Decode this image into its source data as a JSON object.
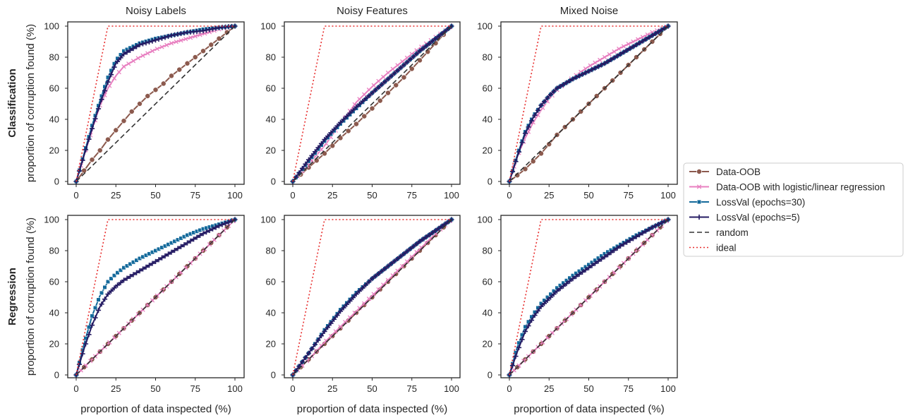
{
  "figure": {
    "column_titles": [
      "Noisy Labels",
      "Noisy Features",
      "Mixed Noise"
    ],
    "row_labels": [
      "Classification",
      "Regression"
    ],
    "ylabel": "proportion of corruption found (%)",
    "xlabel": "proportion of data inspected (%)"
  },
  "legend": {
    "placement": "right",
    "items": [
      {
        "label": "Data-OOB",
        "series": "dataoob"
      },
      {
        "label": "Data-OOB with logistic/linear regression",
        "series": "dataoob_lin"
      },
      {
        "label": "LossVal (epochs=30)",
        "series": "lossval30"
      },
      {
        "label": "LossVal (epochs=5)",
        "series": "lossval5"
      },
      {
        "label": "random",
        "series": "random"
      },
      {
        "label": "ideal",
        "series": "ideal"
      }
    ]
  },
  "styles": {
    "dataoob": {
      "color": "#8c5a4e",
      "marker": "circle",
      "dash": ""
    },
    "dataoob_lin": {
      "color": "#e87fc0",
      "marker": "x",
      "dash": ""
    },
    "lossval30": {
      "color": "#146a9b",
      "marker": "square",
      "dash": ""
    },
    "lossval5": {
      "color": "#241b63",
      "marker": "plus",
      "dash": ""
    },
    "random": {
      "color": "#333333",
      "marker": "none",
      "dash": "7,4"
    },
    "ideal": {
      "color": "#e83030",
      "marker": "none",
      "dash": "2,3"
    }
  },
  "chart_data": [
    {
      "type": "line",
      "title": "Noisy Labels",
      "row": "Classification",
      "xlim": [
        0,
        100
      ],
      "ylim": [
        0,
        100
      ],
      "xticks": [
        0,
        25,
        50,
        75,
        100
      ],
      "yticks": [
        0,
        20,
        40,
        60,
        80,
        100
      ],
      "grid": false,
      "series": [
        {
          "name": "Data-OOB",
          "key": "dataoob",
          "x": [
            0,
            5,
            10,
            15,
            20,
            25,
            30,
            35,
            40,
            45,
            50,
            55,
            60,
            65,
            70,
            75,
            80,
            85,
            90,
            95,
            100
          ],
          "y": [
            0,
            7,
            14,
            20,
            27,
            33,
            39,
            45,
            50,
            55,
            59,
            63,
            68,
            72,
            76,
            80,
            84,
            88,
            92,
            96,
            100
          ]
        },
        {
          "name": "Data-OOB with logistic/linear regression",
          "key": "dataoob_lin",
          "x": [
            0,
            5,
            10,
            15,
            20,
            25,
            30,
            40,
            50,
            60,
            70,
            80,
            90,
            100
          ],
          "y": [
            0,
            17,
            33,
            49,
            60,
            68,
            74,
            80,
            85,
            89,
            92,
            95,
            98,
            100
          ]
        },
        {
          "name": "LossVal (epochs=30)",
          "key": "lossval30",
          "x": [
            0,
            5,
            10,
            15,
            20,
            25,
            30,
            40,
            50,
            60,
            70,
            80,
            90,
            100
          ],
          "y": [
            0,
            18,
            36,
            52,
            67,
            78,
            84,
            89,
            92,
            94,
            96,
            98,
            99,
            100
          ]
        },
        {
          "name": "LossVal (epochs=5)",
          "key": "lossval5",
          "x": [
            0,
            5,
            10,
            15,
            20,
            25,
            30,
            40,
            50,
            60,
            70,
            80,
            90,
            100
          ],
          "y": [
            0,
            17,
            34,
            50,
            64,
            76,
            82,
            88,
            91,
            94,
            96,
            97,
            99,
            100
          ]
        },
        {
          "name": "random",
          "key": "random",
          "x": [
            0,
            100
          ],
          "y": [
            0,
            100
          ]
        },
        {
          "name": "ideal",
          "key": "ideal",
          "x": [
            0,
            20,
            100
          ],
          "y": [
            0,
            100,
            100
          ]
        }
      ]
    },
    {
      "type": "line",
      "title": "Noisy Features",
      "row": "Classification",
      "xlim": [
        0,
        100
      ],
      "ylim": [
        0,
        100
      ],
      "xticks": [
        0,
        25,
        50,
        75,
        100
      ],
      "yticks": [
        0,
        20,
        40,
        60,
        80,
        100
      ],
      "grid": false,
      "series": [
        {
          "name": "Data-OOB",
          "key": "dataoob",
          "x": [
            0,
            10,
            20,
            30,
            40,
            50,
            60,
            70,
            80,
            90,
            100
          ],
          "y": [
            0,
            9,
            18,
            28,
            37,
            47,
            57,
            67,
            78,
            89,
            100
          ]
        },
        {
          "name": "Data-OOB with logistic/linear regression",
          "key": "dataoob_lin",
          "x": [
            0,
            10,
            20,
            30,
            40,
            50,
            60,
            70,
            80,
            90,
            100
          ],
          "y": [
            0,
            11,
            23,
            37,
            51,
            61,
            70,
            78,
            86,
            93,
            100
          ]
        },
        {
          "name": "LossVal (epochs=30)",
          "key": "lossval30",
          "x": [
            0,
            10,
            20,
            30,
            40,
            50,
            60,
            70,
            80,
            90,
            100
          ],
          "y": [
            0,
            13,
            26,
            37,
            47,
            57,
            66,
            75,
            84,
            92,
            100
          ]
        },
        {
          "name": "LossVal (epochs=5)",
          "key": "lossval5",
          "x": [
            0,
            10,
            20,
            30,
            40,
            50,
            60,
            70,
            80,
            90,
            100
          ],
          "y": [
            0,
            14,
            27,
            38,
            48,
            57,
            66,
            75,
            84,
            92,
            100
          ]
        },
        {
          "name": "random",
          "key": "random",
          "x": [
            0,
            100
          ],
          "y": [
            0,
            100
          ]
        },
        {
          "name": "ideal",
          "key": "ideal",
          "x": [
            0,
            20,
            100
          ],
          "y": [
            0,
            100,
            100
          ]
        }
      ]
    },
    {
      "type": "line",
      "title": "Mixed Noise",
      "row": "Classification",
      "xlim": [
        0,
        100
      ],
      "ylim": [
        0,
        100
      ],
      "xticks": [
        0,
        25,
        50,
        75,
        100
      ],
      "yticks": [
        0,
        20,
        40,
        60,
        80,
        100
      ],
      "grid": false,
      "series": [
        {
          "name": "Data-OOB",
          "key": "dataoob",
          "x": [
            0,
            10,
            20,
            30,
            40,
            50,
            60,
            70,
            80,
            90,
            100
          ],
          "y": [
            0,
            8,
            18,
            30,
            40,
            50,
            60,
            70,
            80,
            90,
            100
          ]
        },
        {
          "name": "Data-OOB with logistic/linear regression",
          "key": "dataoob_lin",
          "x": [
            0,
            5,
            10,
            15,
            20,
            25,
            30,
            40,
            50,
            60,
            70,
            80,
            90,
            100
          ],
          "y": [
            0,
            16,
            28,
            38,
            46,
            53,
            59,
            67,
            74,
            80,
            86,
            91,
            96,
            100
          ]
        },
        {
          "name": "LossVal (epochs=30)",
          "key": "lossval30",
          "x": [
            0,
            5,
            10,
            15,
            20,
            25,
            30,
            40,
            50,
            60,
            70,
            80,
            90,
            100
          ],
          "y": [
            0,
            17,
            32,
            42,
            49,
            55,
            60,
            66,
            71,
            76,
            82,
            88,
            94,
            100
          ]
        },
        {
          "name": "LossVal (epochs=5)",
          "key": "lossval5",
          "x": [
            0,
            5,
            10,
            15,
            20,
            25,
            30,
            40,
            50,
            60,
            70,
            80,
            90,
            100
          ],
          "y": [
            0,
            16,
            31,
            41,
            49,
            55,
            60,
            66,
            71,
            76,
            82,
            88,
            94,
            100
          ]
        },
        {
          "name": "random",
          "key": "random",
          "x": [
            0,
            100
          ],
          "y": [
            0,
            100
          ]
        },
        {
          "name": "ideal",
          "key": "ideal",
          "x": [
            0,
            20,
            100
          ],
          "y": [
            0,
            100,
            100
          ]
        }
      ]
    },
    {
      "type": "line",
      "title": "Noisy Labels",
      "row": "Regression",
      "xlim": [
        0,
        100
      ],
      "ylim": [
        0,
        100
      ],
      "xticks": [
        0,
        25,
        50,
        75,
        100
      ],
      "yticks": [
        0,
        20,
        40,
        60,
        80,
        100
      ],
      "grid": false,
      "series": [
        {
          "name": "Data-OOB",
          "key": "dataoob",
          "x": [
            0,
            10,
            20,
            30,
            40,
            50,
            60,
            70,
            80,
            90,
            100
          ],
          "y": [
            0,
            10,
            20,
            30,
            40,
            50,
            60,
            70,
            80,
            90,
            100
          ]
        },
        {
          "name": "Data-OOB with logistic/linear regression",
          "key": "dataoob_lin",
          "x": [
            0,
            10,
            20,
            30,
            40,
            50,
            60,
            70,
            80,
            90,
            100
          ],
          "y": [
            0,
            10,
            20,
            30,
            40,
            50,
            60,
            70,
            80,
            90,
            100
          ]
        },
        {
          "name": "LossVal (epochs=30)",
          "key": "lossval30",
          "x": [
            0,
            5,
            10,
            15,
            20,
            25,
            30,
            40,
            50,
            60,
            70,
            80,
            90,
            100
          ],
          "y": [
            0,
            20,
            38,
            51,
            60,
            65,
            69,
            75,
            80,
            85,
            90,
            94,
            97,
            100
          ]
        },
        {
          "name": "LossVal (epochs=5)",
          "key": "lossval5",
          "x": [
            0,
            5,
            10,
            15,
            20,
            25,
            30,
            40,
            50,
            60,
            70,
            80,
            90,
            100
          ],
          "y": [
            0,
            17,
            32,
            44,
            52,
            57,
            61,
            67,
            73,
            79,
            85,
            91,
            96,
            100
          ]
        },
        {
          "name": "random",
          "key": "random",
          "x": [
            0,
            100
          ],
          "y": [
            0,
            100
          ]
        },
        {
          "name": "ideal",
          "key": "ideal",
          "x": [
            0,
            20,
            100
          ],
          "y": [
            0,
            100,
            100
          ]
        }
      ]
    },
    {
      "type": "line",
      "title": "Noisy Features",
      "row": "Regression",
      "xlim": [
        0,
        100
      ],
      "ylim": [
        0,
        100
      ],
      "xticks": [
        0,
        25,
        50,
        75,
        100
      ],
      "yticks": [
        0,
        20,
        40,
        60,
        80,
        100
      ],
      "grid": false,
      "series": [
        {
          "name": "Data-OOB",
          "key": "dataoob",
          "x": [
            0,
            10,
            20,
            30,
            40,
            50,
            60,
            70,
            80,
            90,
            100
          ],
          "y": [
            0,
            10,
            20,
            30,
            40,
            50,
            60,
            70,
            80,
            90,
            100
          ]
        },
        {
          "name": "Data-OOB with logistic/linear regression",
          "key": "dataoob_lin",
          "x": [
            0,
            10,
            20,
            30,
            40,
            50,
            60,
            70,
            80,
            90,
            100
          ],
          "y": [
            0,
            10,
            21,
            31,
            41,
            51,
            61,
            71,
            81,
            91,
            100
          ]
        },
        {
          "name": "LossVal (epochs=30)",
          "key": "lossval30",
          "x": [
            0,
            10,
            20,
            30,
            40,
            50,
            60,
            70,
            80,
            90,
            100
          ],
          "y": [
            0,
            14,
            29,
            42,
            53,
            62,
            70,
            78,
            86,
            93,
            100
          ]
        },
        {
          "name": "LossVal (epochs=5)",
          "key": "lossval5",
          "x": [
            0,
            10,
            20,
            30,
            40,
            50,
            60,
            70,
            80,
            90,
            100
          ],
          "y": [
            0,
            14,
            28,
            41,
            52,
            62,
            70,
            78,
            86,
            93,
            100
          ]
        },
        {
          "name": "random",
          "key": "random",
          "x": [
            0,
            100
          ],
          "y": [
            0,
            100
          ]
        },
        {
          "name": "ideal",
          "key": "ideal",
          "x": [
            0,
            20,
            100
          ],
          "y": [
            0,
            100,
            100
          ]
        }
      ]
    },
    {
      "type": "line",
      "title": "Mixed Noise",
      "row": "Regression",
      "xlim": [
        0,
        100
      ],
      "ylim": [
        0,
        100
      ],
      "xticks": [
        0,
        25,
        50,
        75,
        100
      ],
      "yticks": [
        0,
        20,
        40,
        60,
        80,
        100
      ],
      "grid": false,
      "series": [
        {
          "name": "Data-OOB",
          "key": "dataoob",
          "x": [
            0,
            10,
            20,
            30,
            40,
            50,
            60,
            70,
            80,
            90,
            100
          ],
          "y": [
            0,
            10,
            20,
            30,
            40,
            50,
            60,
            70,
            80,
            90,
            100
          ]
        },
        {
          "name": "Data-OOB with logistic/linear regression",
          "key": "dataoob_lin",
          "x": [
            0,
            10,
            20,
            30,
            40,
            50,
            60,
            70,
            80,
            90,
            100
          ],
          "y": [
            0,
            10,
            20,
            30,
            40,
            50,
            60,
            70,
            80,
            90,
            100
          ]
        },
        {
          "name": "LossVal (epochs=30)",
          "key": "lossval30",
          "x": [
            0,
            5,
            10,
            15,
            20,
            25,
            30,
            40,
            50,
            60,
            70,
            80,
            90,
            100
          ],
          "y": [
            0,
            18,
            31,
            39,
            46,
            51,
            56,
            64,
            71,
            78,
            84,
            90,
            95,
            100
          ]
        },
        {
          "name": "LossVal (epochs=5)",
          "key": "lossval5",
          "x": [
            0,
            5,
            10,
            15,
            20,
            25,
            30,
            40,
            50,
            60,
            70,
            80,
            90,
            100
          ],
          "y": [
            0,
            15,
            28,
            37,
            44,
            49,
            54,
            62,
            69,
            76,
            83,
            89,
            95,
            100
          ]
        },
        {
          "name": "random",
          "key": "random",
          "x": [
            0,
            100
          ],
          "y": [
            0,
            100
          ]
        },
        {
          "name": "ideal",
          "key": "ideal",
          "x": [
            0,
            20,
            100
          ],
          "y": [
            0,
            100,
            100
          ]
        }
      ]
    }
  ]
}
